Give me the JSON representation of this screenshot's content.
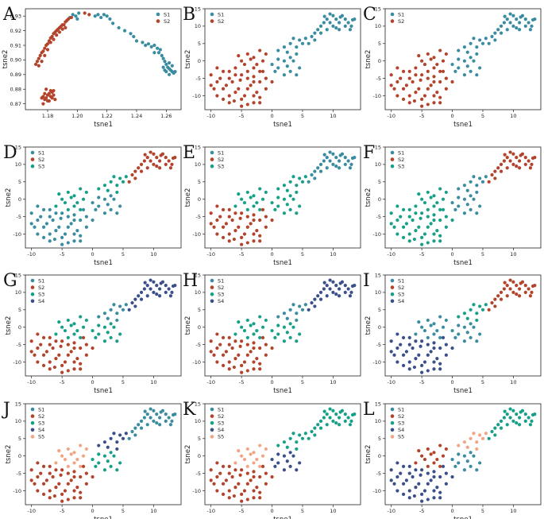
{
  "colors": {
    "S1": "#3a8ca0",
    "S2": "#b3432b",
    "S3": "#17a088",
    "S4": "#3b4f8a",
    "S5": "#f0a683"
  },
  "chart_data": [
    {
      "letter": "A",
      "type": "scatter",
      "xlabel": "tsne1",
      "ylabel": "tsne2",
      "xlim": [
        1.165,
        1.27
      ],
      "ylim": [
        0.866,
        0.935
      ],
      "xticks": [
        1.18,
        1.2,
        1.22,
        1.24,
        1.26
      ],
      "xtick_labels": [
        "1.18",
        "1.20",
        "1.22",
        "1.24",
        "1.26"
      ],
      "yticks": [
        0.87,
        0.88,
        0.89,
        0.9,
        0.91,
        0.92,
        0.93
      ],
      "ytick_labels": [
        "0.87",
        "0.88",
        "0.89",
        "0.90",
        "0.91",
        "0.92",
        "0.93"
      ],
      "legend": [
        {
          "label": "S1",
          "color": "S1"
        },
        {
          "label": "S2",
          "color": "S2"
        }
      ],
      "series": [
        {
          "name": "S1",
          "color": "S1",
          "points": [
            [
              1.195,
              0.929
            ],
            [
              1.197,
              0.931
            ],
            [
              1.199,
              0.93
            ],
            [
              1.201,
              0.932
            ],
            [
              1.2,
              0.928
            ],
            [
              1.212,
              0.93
            ],
            [
              1.214,
              0.931
            ],
            [
              1.216,
              0.929
            ],
            [
              1.218,
              0.931
            ],
            [
              1.22,
              0.93
            ],
            [
              1.222,
              0.928
            ],
            [
              1.224,
              0.925
            ],
            [
              1.228,
              0.922
            ],
            [
              1.232,
              0.92
            ],
            [
              1.236,
              0.918
            ],
            [
              1.238,
              0.916
            ],
            [
              1.24,
              0.913
            ],
            [
              1.244,
              0.912
            ],
            [
              1.246,
              0.91
            ],
            [
              1.248,
              0.911
            ],
            [
              1.25,
              0.909
            ],
            [
              1.252,
              0.91
            ],
            [
              1.254,
              0.908
            ],
            [
              1.256,
              0.907
            ],
            [
              1.255,
              0.905
            ],
            [
              1.257,
              0.903
            ],
            [
              1.258,
              0.901
            ],
            [
              1.259,
              0.899
            ],
            [
              1.26,
              0.897
            ],
            [
              1.261,
              0.895
            ],
            [
              1.262,
              0.894
            ],
            [
              1.263,
              0.893
            ],
            [
              1.264,
              0.892
            ],
            [
              1.265,
              0.891
            ],
            [
              1.262,
              0.89
            ],
            [
              1.26,
              0.892
            ],
            [
              1.264,
              0.896
            ],
            [
              1.258,
              0.895
            ],
            [
              1.252,
              0.905
            ],
            [
              1.262,
              0.898
            ],
            [
              1.266,
              0.892
            ],
            [
              1.259,
              0.893
            ]
          ]
        },
        {
          "name": "S2",
          "color": "S2",
          "points": [
            [
              1.172,
              0.897
            ],
            [
              1.173,
              0.899
            ],
            [
              1.174,
              0.901
            ],
            [
              1.175,
              0.903
            ],
            [
              1.176,
              0.905
            ],
            [
              1.177,
              0.906
            ],
            [
              1.178,
              0.908
            ],
            [
              1.179,
              0.91
            ],
            [
              1.18,
              0.911
            ],
            [
              1.181,
              0.913
            ],
            [
              1.182,
              0.915
            ],
            [
              1.183,
              0.916
            ],
            [
              1.184,
              0.918
            ],
            [
              1.185,
              0.919
            ],
            [
              1.186,
              0.92
            ],
            [
              1.187,
              0.921
            ],
            [
              1.188,
              0.922
            ],
            [
              1.189,
              0.923
            ],
            [
              1.19,
              0.924
            ],
            [
              1.191,
              0.924
            ],
            [
              1.192,
              0.926
            ],
            [
              1.193,
              0.927
            ],
            [
              1.194,
              0.928
            ],
            [
              1.196,
              0.929
            ],
            [
              1.182,
              0.912
            ],
            [
              1.18,
              0.907
            ],
            [
              1.178,
              0.903
            ],
            [
              1.176,
              0.899
            ],
            [
              1.174,
              0.896
            ],
            [
              1.186,
              0.917
            ],
            [
              1.188,
              0.919
            ],
            [
              1.184,
              0.914
            ],
            [
              1.205,
              0.932
            ],
            [
              1.208,
              0.931
            ],
            [
              1.19,
              0.921
            ],
            [
              1.192,
              0.922
            ],
            [
              1.177,
              0.875
            ],
            [
              1.178,
              0.873
            ],
            [
              1.179,
              0.874
            ],
            [
              1.18,
              0.876
            ],
            [
              1.181,
              0.877
            ],
            [
              1.182,
              0.875
            ],
            [
              1.183,
              0.874
            ],
            [
              1.184,
              0.876
            ],
            [
              1.185,
              0.873
            ],
            [
              1.18,
              0.872
            ],
            [
              1.178,
              0.877
            ],
            [
              1.182,
              0.879
            ],
            [
              1.179,
              0.88
            ],
            [
              1.181,
              0.872
            ],
            [
              1.183,
              0.878
            ],
            [
              1.177,
              0.87
            ],
            [
              1.176,
              0.874
            ],
            [
              1.184,
              0.879
            ]
          ]
        }
      ]
    },
    {
      "letter": "B",
      "type": "scatter",
      "base": true,
      "xlabel": "tsne1",
      "ylabel": "tsne2",
      "legend": [
        {
          "label": "S1",
          "color": "S1"
        },
        {
          "label": "S2",
          "color": "S2"
        }
      ],
      "groups": {
        "upper": "S1",
        "mid": "S1",
        "low": "S1",
        "core": "S2",
        "band": "S2",
        "wide": "S2"
      }
    },
    {
      "letter": "C",
      "type": "scatter",
      "base": true,
      "xlabel": "tsne1",
      "ylabel": "tsne2",
      "legend": [
        {
          "label": "S1",
          "color": "S1"
        },
        {
          "label": "S2",
          "color": "S2"
        }
      ],
      "groups": {
        "upper": "S1",
        "mid": "S1",
        "low": "S1",
        "core": "S2",
        "band": "S2",
        "wide": "S2"
      }
    },
    {
      "letter": "D",
      "type": "scatter",
      "base": true,
      "xlabel": "tsne1",
      "ylabel": "tsne2",
      "legend": [
        {
          "label": "S1",
          "color": "S1"
        },
        {
          "label": "S2",
          "color": "S2"
        },
        {
          "label": "S3",
          "color": "S3"
        }
      ],
      "groups": {
        "upper": "S2",
        "mid": "S3",
        "low": "S1",
        "core": "S1",
        "band": "S3",
        "wide": "S1"
      }
    },
    {
      "letter": "E",
      "type": "scatter",
      "base": true,
      "xlabel": "tsne1",
      "ylabel": "tsne2",
      "legend": [
        {
          "label": "S1",
          "color": "S1"
        },
        {
          "label": "S2",
          "color": "S2"
        },
        {
          "label": "S3",
          "color": "S3"
        }
      ],
      "groups": {
        "upper": "S1",
        "mid": "S3",
        "low": "S3",
        "core": "S2",
        "band": "S3",
        "wide": "S2"
      }
    },
    {
      "letter": "F",
      "type": "scatter",
      "base": true,
      "xlabel": "tsne1",
      "ylabel": "tsne2",
      "legend": [
        {
          "label": "S1",
          "color": "S1"
        },
        {
          "label": "S2",
          "color": "S2"
        },
        {
          "label": "S3",
          "color": "S3"
        }
      ],
      "groups": {
        "upper": "S2",
        "mid": "S1",
        "low": "S1",
        "core": "S3",
        "band": "S3",
        "wide": "S3"
      }
    },
    {
      "letter": "G",
      "type": "scatter",
      "base": true,
      "xlabel": "tsne1",
      "ylabel": "tsne2",
      "legend": [
        {
          "label": "S1",
          "color": "S1"
        },
        {
          "label": "S2",
          "color": "S2"
        },
        {
          "label": "S3",
          "color": "S3"
        },
        {
          "label": "S4",
          "color": "S4"
        }
      ],
      "groups": {
        "upper": "S4",
        "mid": "S1",
        "low": "S3",
        "core": "S2",
        "band": "S3",
        "wide": "S2"
      }
    },
    {
      "letter": "H",
      "type": "scatter",
      "base": true,
      "xlabel": "tsne1",
      "ylabel": "tsne2",
      "legend": [
        {
          "label": "S1",
          "color": "S1"
        },
        {
          "label": "S2",
          "color": "S2"
        },
        {
          "label": "S3",
          "color": "S3"
        },
        {
          "label": "S4",
          "color": "S4"
        }
      ],
      "groups": {
        "upper": "S4",
        "mid": "S1",
        "low": "S3",
        "core": "S2",
        "band": "S3",
        "wide": "S2"
      }
    },
    {
      "letter": "I",
      "type": "scatter",
      "base": true,
      "xlabel": "tsne1",
      "ylabel": "tsne2",
      "legend": [
        {
          "label": "S1",
          "color": "S1"
        },
        {
          "label": "S2",
          "color": "S2"
        },
        {
          "label": "S3",
          "color": "S3"
        },
        {
          "label": "S4",
          "color": "S4"
        }
      ],
      "groups": {
        "upper": "S2",
        "mid": "S3",
        "low": "S1",
        "core": "S4",
        "band": "S1",
        "wide": "S4"
      }
    },
    {
      "letter": "J",
      "type": "scatter",
      "base": true,
      "xlabel": "tsne1",
      "ylabel": "tsne2",
      "legend": [
        {
          "label": "S1",
          "color": "S1"
        },
        {
          "label": "S2",
          "color": "S2"
        },
        {
          "label": "S3",
          "color": "S3"
        },
        {
          "label": "S4",
          "color": "S4"
        },
        {
          "label": "S5",
          "color": "S5"
        }
      ],
      "groups": {
        "upper": "S1",
        "mid": "S4",
        "low": "S3",
        "core": "S2",
        "band": "S5",
        "wide": "S2"
      }
    },
    {
      "letter": "K",
      "type": "scatter",
      "base": true,
      "xlabel": "tsne1",
      "ylabel": "tsne2",
      "legend": [
        {
          "label": "S1",
          "color": "S1"
        },
        {
          "label": "S2",
          "color": "S2"
        },
        {
          "label": "S3",
          "color": "S3"
        },
        {
          "label": "S4",
          "color": "S4"
        },
        {
          "label": "S5",
          "color": "S5"
        }
      ],
      "groups": {
        "upper": "S3",
        "mid": "S3",
        "low": "S4",
        "core": "S2",
        "band": "S5",
        "wide": "S2"
      }
    },
    {
      "letter": "L",
      "type": "scatter",
      "base": true,
      "xlabel": "tsne1",
      "ylabel": "tsne2",
      "legend": [
        {
          "label": "S1",
          "color": "S1"
        },
        {
          "label": "S2",
          "color": "S2"
        },
        {
          "label": "S3",
          "color": "S3"
        },
        {
          "label": "S4",
          "color": "S4"
        },
        {
          "label": "S5",
          "color": "S5"
        }
      ],
      "groups": {
        "upper": "S3",
        "mid": "S5",
        "low": "S1",
        "core": "S4",
        "band": "S2",
        "wide": "S4"
      }
    }
  ],
  "shared_axes": {
    "xlim": [
      -11,
      14.5
    ],
    "ylim": [
      -14,
      15
    ],
    "xticks": [
      -10,
      -5,
      0,
      5,
      10
    ],
    "xtick_labels": [
      "-10",
      "-5",
      "0",
      "5",
      "10"
    ],
    "yticks": [
      -10,
      -5,
      0,
      5,
      10,
      15
    ],
    "ytick_labels": [
      "-10",
      "-5",
      "0",
      "5",
      "10",
      "15"
    ]
  },
  "base_points": {
    "upper": [
      [
        6,
        5
      ],
      [
        6.5,
        7
      ],
      [
        7,
        8
      ],
      [
        7.5,
        9
      ],
      [
        8,
        10
      ],
      [
        8.5,
        11
      ],
      [
        9,
        12
      ],
      [
        9.5,
        11
      ],
      [
        10,
        13
      ],
      [
        10.5,
        12
      ],
      [
        11,
        11
      ],
      [
        11.5,
        13
      ],
      [
        12,
        12
      ],
      [
        12.5,
        11
      ],
      [
        13,
        10
      ],
      [
        13.5,
        12
      ],
      [
        9,
        9
      ],
      [
        10,
        10
      ],
      [
        11,
        9
      ],
      [
        12,
        10
      ],
      [
        8,
        8
      ],
      [
        7,
        6
      ],
      [
        9.5,
        13.5
      ],
      [
        10.5,
        9.5
      ],
      [
        12.8,
        9
      ],
      [
        11.2,
        12.6
      ],
      [
        8.6,
        12.8
      ],
      [
        13.2,
        11.8
      ]
    ],
    "mid": [
      [
        1,
        3
      ],
      [
        2,
        4
      ],
      [
        3,
        5
      ],
      [
        4,
        4
      ],
      [
        4.5,
        6
      ],
      [
        5,
        5
      ],
      [
        3.5,
        6.5
      ],
      [
        2.5,
        2.5
      ],
      [
        5.5,
        6.5
      ],
      [
        4,
        2
      ]
    ],
    "low": [
      [
        0,
        -1
      ],
      [
        1,
        -2
      ],
      [
        2,
        0
      ],
      [
        3,
        -3
      ],
      [
        3.5,
        0
      ],
      [
        4,
        -4
      ],
      [
        2,
        -4
      ],
      [
        1,
        0.5
      ],
      [
        0.5,
        -3
      ],
      [
        3,
        1
      ],
      [
        4.5,
        -2
      ],
      [
        2.5,
        -1.5
      ]
    ],
    "core": [
      [
        -9,
        -6
      ],
      [
        -8,
        -8
      ],
      [
        -7,
        -10
      ],
      [
        -6,
        -9
      ],
      [
        -5,
        -11
      ],
      [
        -4,
        -8
      ],
      [
        -3,
        -10
      ],
      [
        -8.5,
        -5
      ],
      [
        -7.5,
        -7
      ],
      [
        -6.5,
        -6
      ],
      [
        -5.5,
        -8
      ],
      [
        -4.5,
        -10
      ],
      [
        -3.5,
        -7
      ],
      [
        -2.5,
        -9
      ],
      [
        -7,
        -12
      ],
      [
        -5,
        -13
      ],
      [
        -9.5,
        -8
      ],
      [
        -6,
        -4
      ],
      [
        -4,
        -5
      ],
      [
        -2,
        -6
      ],
      [
        -8,
        -3
      ],
      [
        -3,
        -12
      ],
      [
        -6.2,
        -11.5
      ],
      [
        -2,
        -10.5
      ],
      [
        -9,
        -10
      ],
      [
        -5.2,
        -5.5
      ]
    ],
    "band": [
      [
        -5,
        0
      ],
      [
        -4,
        2
      ],
      [
        -3,
        1
      ],
      [
        -2,
        3
      ],
      [
        -4.5,
        -1
      ],
      [
        -3.5,
        0.5
      ],
      [
        -2.5,
        -1
      ],
      [
        -1.5,
        0
      ],
      [
        -1,
        2
      ],
      [
        -5.5,
        1.5
      ],
      [
        -3,
        -2
      ],
      [
        -2,
        -3
      ],
      [
        -4,
        -3
      ],
      [
        -6,
        -2
      ]
    ],
    "wide": [
      [
        -10,
        -4
      ],
      [
        -9,
        -2
      ],
      [
        -7,
        -3
      ],
      [
        -5,
        -4
      ],
      [
        -3,
        -4.5
      ],
      [
        -1,
        -5
      ],
      [
        -1,
        -8
      ],
      [
        0,
        -6
      ],
      [
        -2,
        -12
      ],
      [
        -4,
        -12.5
      ],
      [
        -8,
        -11
      ],
      [
        -10,
        -7
      ],
      [
        -7,
        -5
      ],
      [
        -3,
        -6
      ],
      [
        -1.5,
        -3
      ]
    ]
  }
}
